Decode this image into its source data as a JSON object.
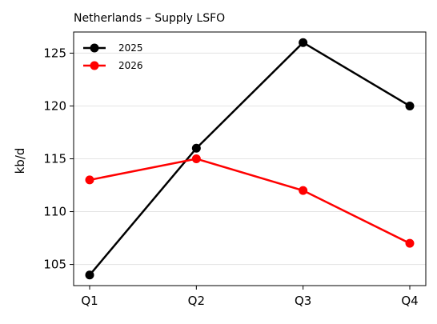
{
  "chart_data": {
    "type": "line",
    "title": "Netherlands – Supply LSFO",
    "xlabel": "",
    "ylabel": "kb/d",
    "categories": [
      "Q1",
      "Q2",
      "Q3",
      "Q4"
    ],
    "ylim": [
      103,
      127
    ],
    "yticks": [
      105,
      110,
      115,
      120,
      125
    ],
    "grid": "horizontal",
    "legend_position": "top-left",
    "series": [
      {
        "name": "2025",
        "color": "#000000",
        "values": [
          104,
          116,
          126,
          120
        ]
      },
      {
        "name": "2026",
        "color": "#ff0000",
        "values": [
          113,
          115,
          112,
          107
        ]
      }
    ]
  }
}
